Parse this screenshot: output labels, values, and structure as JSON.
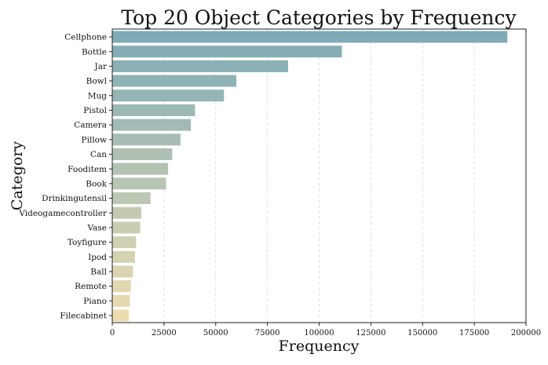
{
  "chart_data": {
    "type": "bar",
    "orientation": "horizontal",
    "title": "Top 20 Object Categories by Frequency",
    "xlabel": "Frequency",
    "ylabel": "Category",
    "xlim": [
      0,
      200000
    ],
    "xticks": [
      0,
      25000,
      50000,
      75000,
      100000,
      125000,
      150000,
      175000,
      200000
    ],
    "grid": "vertical-dashed",
    "colormap": [
      "#7fabb6",
      "#ecdcb0"
    ],
    "categories": [
      "Cellphone",
      "Bottle",
      "Jar",
      "Bowl",
      "Mug",
      "Pistol",
      "Camera",
      "Pillow",
      "Can",
      "Fooditem",
      "Book",
      "Drinkingutensil",
      "Videogamecontroller",
      "Vase",
      "Toyfigure",
      "Ipod",
      "Ball",
      "Remote",
      "Piano",
      "Filecabinet"
    ],
    "values": [
      191000,
      111000,
      85000,
      60000,
      54000,
      40000,
      38000,
      33000,
      29000,
      27000,
      26000,
      18500,
      14000,
      13500,
      11500,
      11000,
      10000,
      9000,
      8500,
      8000
    ]
  }
}
